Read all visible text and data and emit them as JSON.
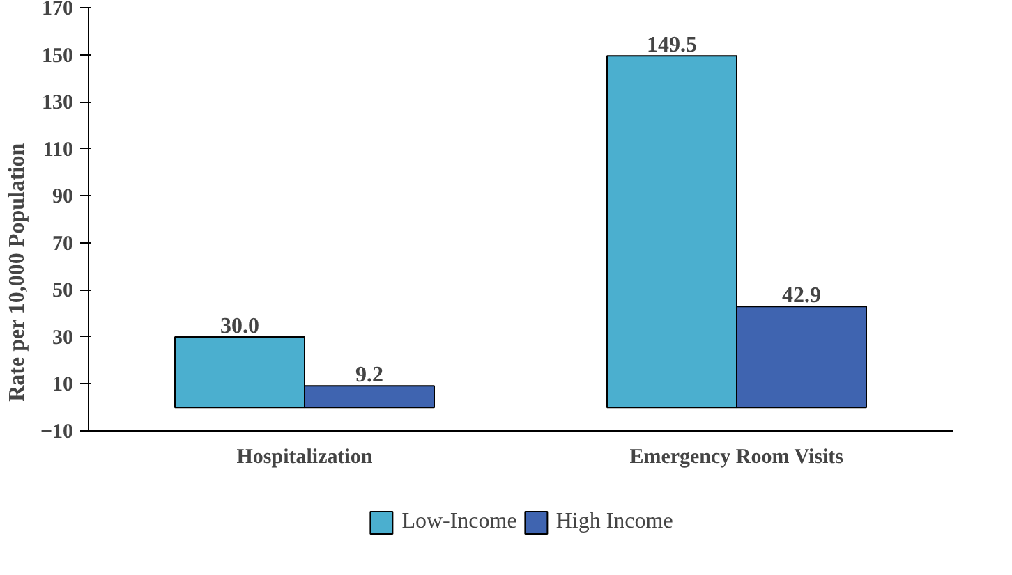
{
  "chart_data": {
    "type": "bar",
    "ylabel": "Rate per 10,000 Population",
    "categories": [
      "Hospitalization",
      "Emergency Room Visits"
    ],
    "series": [
      {
        "name": "Low-Income",
        "color": "#4bafcf",
        "values": [
          30.0,
          149.5
        ],
        "value_labels": [
          "30.0",
          "149.5"
        ]
      },
      {
        "name": "High Income",
        "color": "#3f64b0",
        "values": [
          9.2,
          42.9
        ],
        "value_labels": [
          "9.2",
          "42.9"
        ]
      }
    ],
    "ylim": [
      -10,
      170
    ],
    "yticks": [
      -10,
      10,
      30,
      50,
      70,
      90,
      110,
      130,
      150,
      170
    ],
    "legend": "bottom",
    "grid": false
  }
}
